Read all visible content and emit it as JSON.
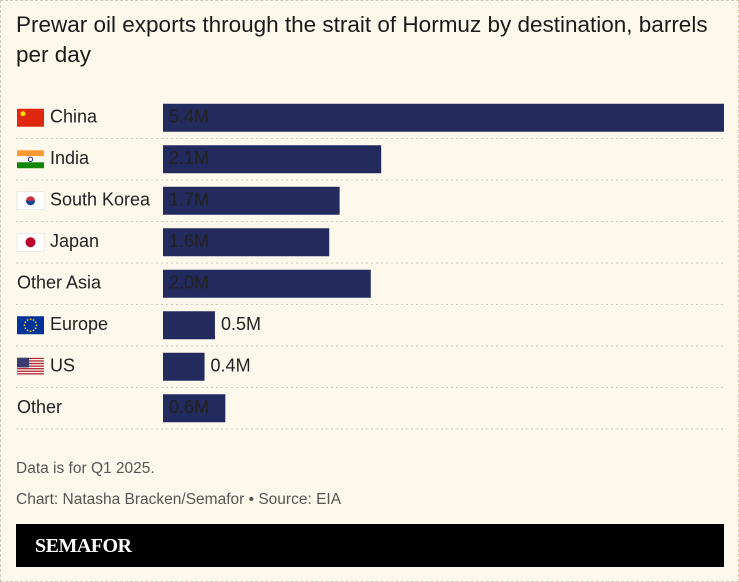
{
  "chart_data": {
    "type": "bar",
    "orientation": "horizontal",
    "title": "Prewar oil exports through the strait of Hormuz by destination, barrels per day",
    "categories": [
      "China",
      "India",
      "South Korea",
      "Japan",
      "Other Asia",
      "Europe",
      "US",
      "Other"
    ],
    "values": [
      5.4,
      2.1,
      1.7,
      1.6,
      2.0,
      0.5,
      0.4,
      0.6
    ],
    "value_labels": [
      "5.4M",
      "2.1M",
      "1.7M",
      "1.6M",
      "2.0M",
      "0.5M",
      "0.4M",
      "0.6M"
    ],
    "color": "#232a5e",
    "notes": [
      "Data is for Q1 2025.",
      "Chart: Natasha Bracken/Semafor • Source: EIA"
    ],
    "brand": "SEMAFOR"
  }
}
